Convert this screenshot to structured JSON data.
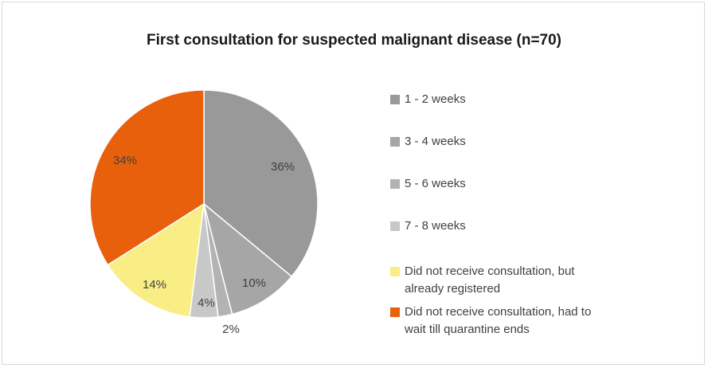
{
  "chart_data": {
    "type": "pie",
    "title": "First consultation for suspected malignant disease (n=70)",
    "slices": [
      {
        "label": "1 - 2 weeks",
        "value": 36,
        "display": "36%",
        "color": "#999999"
      },
      {
        "label": "3 - 4 weeks",
        "value": 10,
        "display": "10%",
        "color": "#a6a6a6"
      },
      {
        "label": "5 - 6 weeks",
        "value": 2,
        "display": "2%",
        "color": "#b3b3b3"
      },
      {
        "label": "7 - 8 weeks",
        "value": 4,
        "display": "4%",
        "color": "#c8c8c8"
      },
      {
        "label": "Did not receive consultation, but already registered",
        "value": 14,
        "display": "14%",
        "color": "#f9ee86"
      },
      {
        "label": "Did not receive consultation, had to wait till quarantine ends",
        "value": 34,
        "display": "34%",
        "color": "#e8600c"
      }
    ],
    "legend_position": "right"
  }
}
